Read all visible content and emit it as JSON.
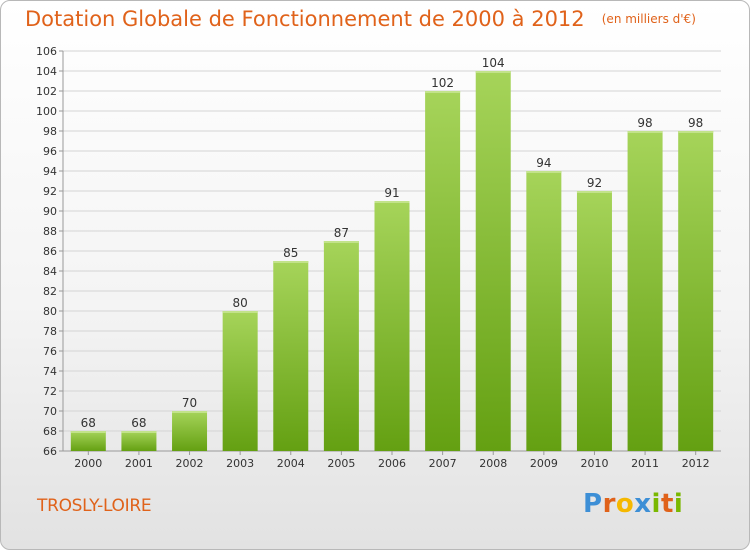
{
  "title": "Dotation Globale de Fonctionnement de 2000 à 2012",
  "subtitle": "(en milliers d'€)",
  "commune": "TROSLY-LOIRE",
  "brand": {
    "letters": [
      "P",
      "r",
      "o",
      "x",
      "i",
      "t",
      "i"
    ],
    "colors": [
      "#3d8fd6",
      "#e0621a",
      "#f5b800",
      "#3d8fd6",
      "#7ab800",
      "#e0621a",
      "#7ab800"
    ]
  },
  "colors": {
    "accent": "#e0621a",
    "bar_light": "#a6d45a",
    "bar_dark": "#64a012",
    "grid": "#d4d4d4"
  },
  "chart_data": {
    "type": "bar",
    "categories": [
      "2000",
      "2001",
      "2002",
      "2003",
      "2004",
      "2005",
      "2006",
      "2007",
      "2008",
      "2009",
      "2010",
      "2011",
      "2012"
    ],
    "values": [
      68,
      68,
      70,
      80,
      85,
      87,
      91,
      102,
      104,
      94,
      92,
      98,
      98
    ],
    "title": "Dotation Globale de Fonctionnement de 2000 à 2012",
    "subtitle": "(en milliers d'€)",
    "ylim": [
      66,
      106
    ],
    "yticks": [
      66,
      68,
      70,
      72,
      74,
      76,
      78,
      80,
      82,
      84,
      86,
      88,
      90,
      92,
      94,
      96,
      98,
      100,
      102,
      104,
      106
    ],
    "grid": true
  }
}
